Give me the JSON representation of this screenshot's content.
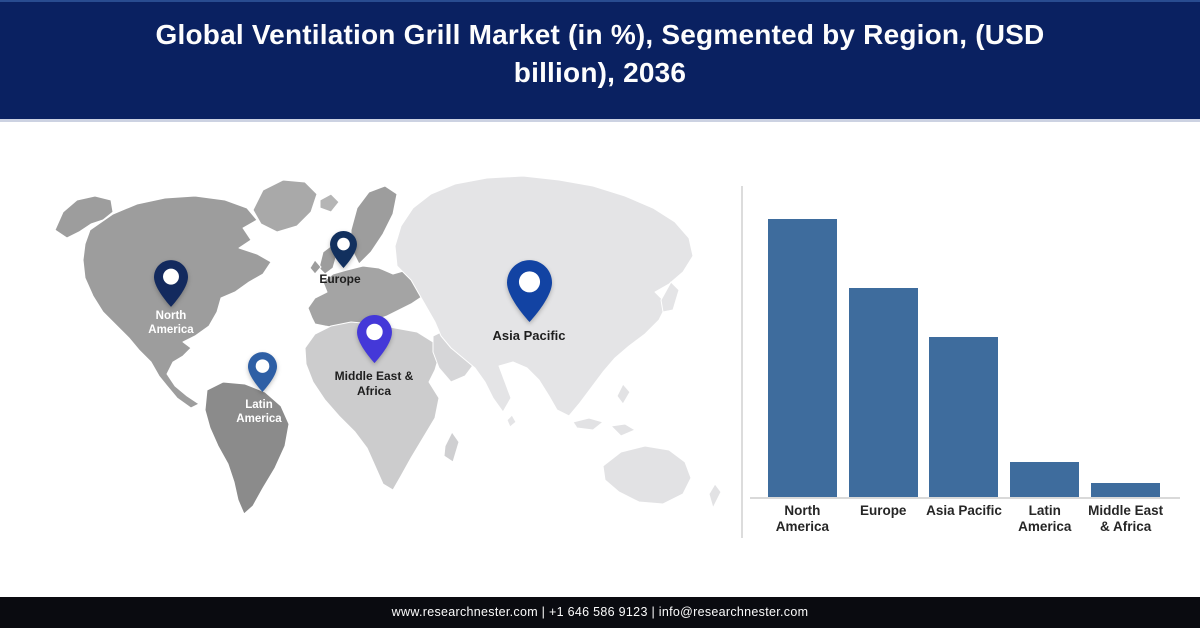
{
  "header": {
    "title": "Global Ventilation Grill Market (in %), Segmented by Region, (USD\nbillion), 2036",
    "bg_color": "#0a2161",
    "text_color": "#fdfdfd"
  },
  "map": {
    "pins": [
      {
        "id": "north-america",
        "label": "North\nAmerica",
        "color": "#132a5e",
        "label_color": "#ffffff"
      },
      {
        "id": "europe",
        "label": "Europe",
        "color": "#12305e",
        "label_color": "#1e1e1e"
      },
      {
        "id": "latin-america",
        "label": "Latin\nAmerica",
        "color": "#2e5fa5",
        "label_color": "#ffffff"
      },
      {
        "id": "middle-east-africa",
        "label": "Middle East &\nAfrica",
        "color": "#4438d8",
        "label_color": "#1e1e1e"
      },
      {
        "id": "asia-pacific",
        "label": "Asia Pacific",
        "color": "#1243a3",
        "label_color": "#1e1e1e"
      }
    ],
    "land_colors": {
      "north_america": "#9d9d9d",
      "south_america": "#8b8b8b",
      "europe": "#a4a4a4",
      "africa": "#cccccd",
      "asia": "#e4e4e6",
      "oceania": "#e2e2e4"
    }
  },
  "chart_data": {
    "type": "bar",
    "title": "Global Ventilation Grill Market (in %), Segmented by Region, (USD billion), 2036",
    "categories": [
      "North America",
      "Europe",
      "Asia Pacific",
      "Latin America",
      "Middle East & Africa"
    ],
    "display_labels": [
      "North\nAmerica",
      "Europe",
      "Asia Pacific",
      "Latin\nAmerica",
      "Middle East\n& Africa"
    ],
    "values": [
      40,
      30,
      23,
      5,
      2
    ],
    "unit": "%",
    "xlabel": "",
    "ylabel": "",
    "ylim": [
      0,
      40
    ],
    "grid": false,
    "legend": false,
    "bar_color": "#3e6c9d",
    "axis_line_color": "#d9d9d9"
  },
  "footer": {
    "text": "www.researchnester.com | +1 646 586 9123 | info@researchnester.com",
    "bg_color": "#0a0b10"
  }
}
